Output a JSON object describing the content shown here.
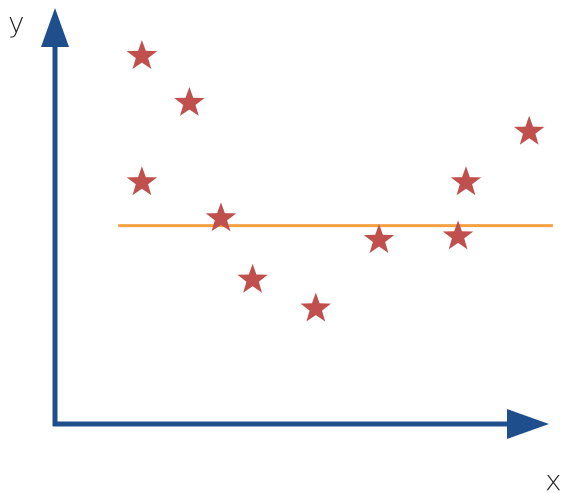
{
  "chart_data": {
    "type": "scatter",
    "title": "",
    "xlabel": "x",
    "ylabel": "y",
    "grid": false,
    "legend": "none",
    "x": [
      1.0,
      1.6,
      1.0,
      2.0,
      2.4,
      3.2,
      4.0,
      5.1,
      5.0,
      5.9
    ],
    "y": [
      10.0,
      8.7,
      6.5,
      5.5,
      3.8,
      3.0,
      4.9,
      6.5,
      5.0,
      7.9
    ],
    "xlim": [
      -0.1,
      6.1
    ],
    "ylim": [
      -0.2,
      11.0
    ],
    "reference_line": {
      "y": 5.3,
      "x_range": [
        0.7,
        6.2
      ],
      "color": "#f4a142"
    },
    "colors": {
      "axes": "#1f4e8c",
      "points": "#c0504d",
      "reference_line": "#f4a142"
    },
    "marker": "star"
  }
}
